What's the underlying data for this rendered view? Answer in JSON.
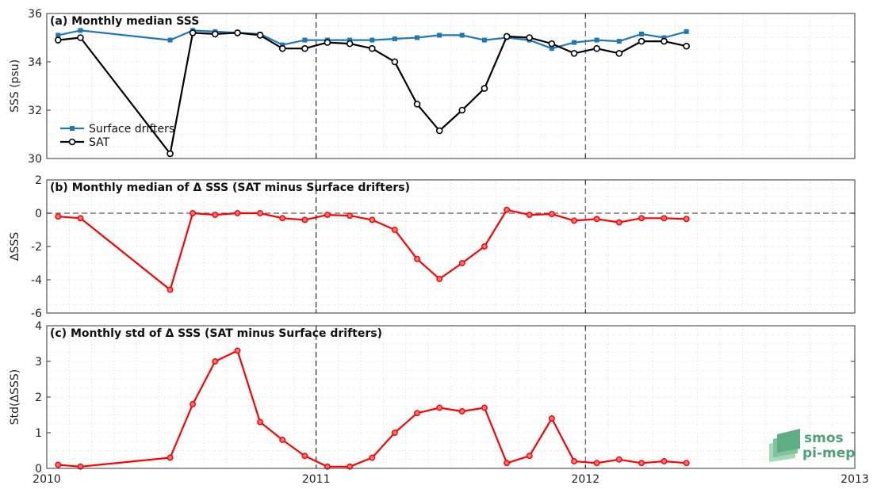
{
  "chart_data": [
    {
      "type": "line",
      "title": "(a) Monthly median SSS",
      "ylabel": "SSS (psu)",
      "ylim": [
        30,
        36
      ],
      "yticks": [
        "30",
        "32",
        "34",
        "36"
      ],
      "xlim": [
        2010,
        2013
      ],
      "grid": true,
      "legend": "left",
      "series": [
        {
          "name": "Surface drifters",
          "color": "#1f77b4",
          "marker": "square",
          "x": [
            2010.042,
            2010.125,
            2010.458,
            2010.542,
            2010.625,
            2010.708,
            2010.792,
            2010.875,
            2010.958,
            2011.042,
            2011.125,
            2011.208,
            2011.292,
            2011.375,
            2011.458,
            2011.542,
            2011.625,
            2011.708,
            2011.792,
            2011.875,
            2011.958,
            2012.042,
            2012.125,
            2012.208,
            2012.292,
            2012.375
          ],
          "values": [
            35.1,
            35.3,
            34.9,
            35.3,
            35.25,
            35.2,
            35.15,
            34.7,
            34.9,
            34.9,
            34.9,
            34.9,
            34.95,
            35.0,
            35.1,
            35.1,
            34.9,
            35.0,
            34.9,
            34.55,
            34.8,
            34.9,
            34.85,
            35.15,
            35.0,
            35.25
          ]
        },
        {
          "name": "SAT",
          "color": "#000000",
          "marker": "circle",
          "x": [
            2010.042,
            2010.125,
            2010.458,
            2010.542,
            2010.625,
            2010.708,
            2010.792,
            2010.875,
            2010.958,
            2011.042,
            2011.125,
            2011.208,
            2011.292,
            2011.375,
            2011.458,
            2011.542,
            2011.625,
            2011.708,
            2011.792,
            2011.875,
            2011.958,
            2012.042,
            2012.125,
            2012.208,
            2012.292,
            2012.375
          ],
          "values": [
            34.9,
            35.0,
            30.2,
            35.2,
            35.15,
            35.2,
            35.1,
            34.55,
            34.55,
            34.8,
            34.75,
            34.55,
            34.0,
            32.25,
            31.15,
            32.0,
            32.9,
            35.05,
            35.0,
            34.75,
            34.35,
            34.55,
            34.35,
            34.85,
            34.85,
            34.65
          ]
        }
      ]
    },
    {
      "type": "line",
      "title": "(b) Monthly median of Δ SSS (SAT minus Surface drifters)",
      "ylabel": "ΔSSS",
      "ylim": [
        -6,
        2
      ],
      "yticks": [
        "-6",
        "-4",
        "-2",
        "0",
        "2"
      ],
      "xlim": [
        2010,
        2013
      ],
      "grid": true,
      "zero_line": true,
      "series": [
        {
          "color": "#ff0000",
          "marker": "circle",
          "x": [
            2010.042,
            2010.125,
            2010.458,
            2010.542,
            2010.625,
            2010.708,
            2010.792,
            2010.875,
            2010.958,
            2011.042,
            2011.125,
            2011.208,
            2011.292,
            2011.375,
            2011.458,
            2011.542,
            2011.625,
            2011.708,
            2011.792,
            2011.875,
            2011.958,
            2012.042,
            2012.125,
            2012.208,
            2012.292,
            2012.375
          ],
          "values": [
            -0.2,
            -0.3,
            -4.6,
            0.0,
            -0.1,
            0.0,
            0.0,
            -0.3,
            -0.4,
            -0.1,
            -0.15,
            -0.4,
            -1.0,
            -2.75,
            -3.95,
            -3.0,
            -2.0,
            0.2,
            -0.1,
            -0.05,
            -0.45,
            -0.35,
            -0.55,
            -0.3,
            -0.3,
            -0.35
          ]
        }
      ]
    },
    {
      "type": "line",
      "title": "(c) Monthly std of Δ SSS (SAT minus Surface drifters)",
      "ylabel": "Std(ΔSSS)",
      "ylim": [
        0,
        4
      ],
      "yticks": [
        "0",
        "1",
        "2",
        "3",
        "4"
      ],
      "xlim": [
        2010,
        2013
      ],
      "xticks": [
        "2010",
        "2011",
        "2012",
        "2013"
      ],
      "grid": true,
      "series": [
        {
          "color": "#ff0000",
          "marker": "circle",
          "x": [
            2010.042,
            2010.125,
            2010.458,
            2010.542,
            2010.625,
            2010.708,
            2010.792,
            2010.875,
            2010.958,
            2011.042,
            2011.125,
            2011.208,
            2011.292,
            2011.375,
            2011.458,
            2011.542,
            2011.625,
            2011.708,
            2011.792,
            2011.875,
            2011.958,
            2012.042,
            2012.125,
            2012.208,
            2012.292,
            2012.375
          ],
          "values": [
            0.1,
            0.05,
            0.3,
            1.8,
            3.0,
            3.3,
            1.3,
            0.8,
            0.35,
            0.05,
            0.05,
            0.3,
            1.0,
            1.55,
            1.7,
            1.6,
            1.7,
            0.15,
            0.35,
            1.4,
            0.2,
            0.15,
            0.25,
            0.15,
            0.2,
            0.15
          ]
        }
      ]
    }
  ],
  "logo": {
    "line1": "smos",
    "line2": "pi-mep",
    "color": "#4f9f78"
  }
}
